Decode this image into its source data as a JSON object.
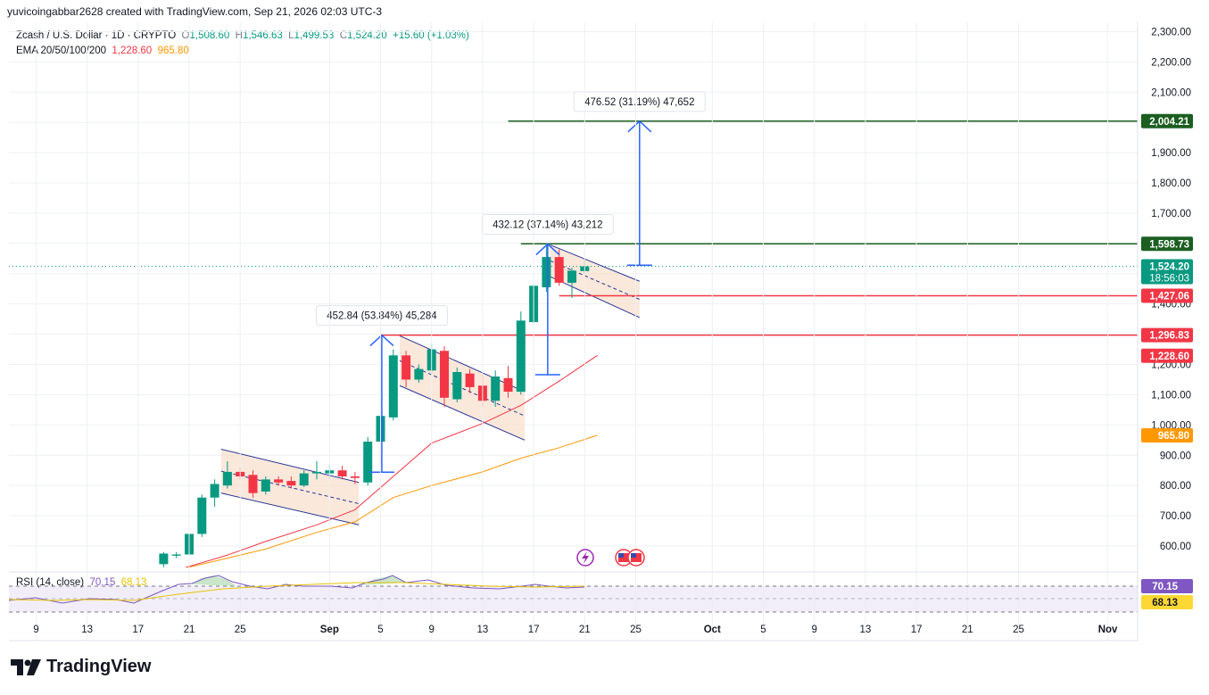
{
  "header": {
    "text": "yuvicoingabbar2628 created with TradingView.com, Sep 21, 2026 02:03 UTC-3"
  },
  "legend": {
    "symbol": "Zcash / U.S. Dollar · 1D · CRYPTO",
    "open_label": "O",
    "open": "1,508.60",
    "high_label": "H",
    "high": "1,546.63",
    "low_label": "L",
    "low": "1,499.53",
    "close_label": "C",
    "close": "1,524.20",
    "change": "+15.60 (+1.03%)",
    "ema_label": "EMA 20/50/100/200",
    "ema20": "1,228.60",
    "ema50": "965.80"
  },
  "rsi": {
    "label": "RSI (14, close)",
    "value": "70.15",
    "ma": "68.13"
  },
  "logo": {
    "text": "TradingView"
  },
  "colors": {
    "up": "#089981",
    "down": "#f23645",
    "ema20": "#f23645",
    "ema50": "#ff9800",
    "target_green": "#1b5e20",
    "measure_blue": "#2962ff",
    "channel_fill": "#f8dcc8",
    "rsi": "#7e57c2",
    "rsi_ma": "#e6c300"
  },
  "chart_data": {
    "type": "candlestick",
    "y_axis": {
      "min": 550,
      "max": 2320,
      "ticks": [
        "600.00",
        "700.00",
        "800.00",
        "900.00",
        "1,000.00",
        "1,100.00",
        "1,200.00",
        "1,300.00",
        "1,400.00",
        "1,500.00",
        "1,600.00",
        "1,700.00",
        "1,800.00",
        "1,900.00",
        "2,000.00",
        "2,100.00",
        "2,200.00",
        "2,300.00"
      ]
    },
    "x_axis": {
      "labels": [
        {
          "d": -12,
          "t": "9"
        },
        {
          "d": -8,
          "t": "13"
        },
        {
          "d": -4,
          "t": "17"
        },
        {
          "d": 0,
          "t": "21"
        },
        {
          "d": 4,
          "t": "25"
        },
        {
          "d": 11,
          "t": "Sep"
        },
        {
          "d": 15,
          "t": "5"
        },
        {
          "d": 19,
          "t": "9"
        },
        {
          "d": 23,
          "t": "13"
        },
        {
          "d": 27,
          "t": "17"
        },
        {
          "d": 31,
          "t": "21"
        },
        {
          "d": 35,
          "t": "25"
        },
        {
          "d": 41,
          "t": "Oct"
        },
        {
          "d": 45,
          "t": "5"
        },
        {
          "d": 49,
          "t": "9"
        },
        {
          "d": 53,
          "t": "13"
        },
        {
          "d": 57,
          "t": "17"
        },
        {
          "d": 61,
          "t": "21"
        },
        {
          "d": 65,
          "t": "25"
        },
        {
          "d": 72,
          "t": "Nov"
        }
      ]
    },
    "candles": [
      {
        "d": -2,
        "o": 540,
        "h": 580,
        "l": 530,
        "c": 575
      },
      {
        "d": -1,
        "o": 568,
        "h": 580,
        "l": 560,
        "c": 572
      },
      {
        "d": 0,
        "o": 572,
        "h": 650,
        "l": 565,
        "c": 640
      },
      {
        "d": 1,
        "o": 640,
        "h": 770,
        "l": 630,
        "c": 760
      },
      {
        "d": 2,
        "o": 760,
        "h": 820,
        "l": 730,
        "c": 805
      },
      {
        "d": 3,
        "o": 800,
        "h": 880,
        "l": 790,
        "c": 845
      },
      {
        "d": 4,
        "o": 845,
        "h": 860,
        "l": 820,
        "c": 830
      },
      {
        "d": 5,
        "o": 835,
        "h": 850,
        "l": 760,
        "c": 775
      },
      {
        "d": 6,
        "o": 780,
        "h": 830,
        "l": 770,
        "c": 820
      },
      {
        "d": 7,
        "o": 820,
        "h": 830,
        "l": 800,
        "c": 810
      },
      {
        "d": 8,
        "o": 815,
        "h": 830,
        "l": 790,
        "c": 800
      },
      {
        "d": 9,
        "o": 800,
        "h": 850,
        "l": 795,
        "c": 840
      },
      {
        "d": 10,
        "o": 840,
        "h": 880,
        "l": 820,
        "c": 845
      },
      {
        "d": 11,
        "o": 840,
        "h": 870,
        "l": 825,
        "c": 850
      },
      {
        "d": 12,
        "o": 850,
        "h": 865,
        "l": 820,
        "c": 830
      },
      {
        "d": 13,
        "o": 830,
        "h": 845,
        "l": 805,
        "c": 825
      },
      {
        "d": 14,
        "o": 810,
        "h": 960,
        "l": 800,
        "c": 945
      },
      {
        "d": 15,
        "o": 945,
        "h": 1040,
        "l": 930,
        "c": 1030
      },
      {
        "d": 16,
        "o": 1025,
        "h": 1250,
        "l": 1015,
        "c": 1230
      },
      {
        "d": 17,
        "o": 1230,
        "h": 1245,
        "l": 1125,
        "c": 1150
      },
      {
        "d": 18,
        "o": 1150,
        "h": 1200,
        "l": 1140,
        "c": 1185
      },
      {
        "d": 19,
        "o": 1180,
        "h": 1270,
        "l": 1170,
        "c": 1250
      },
      {
        "d": 20,
        "o": 1245,
        "h": 1260,
        "l": 1060,
        "c": 1090
      },
      {
        "d": 21,
        "o": 1085,
        "h": 1190,
        "l": 1075,
        "c": 1175
      },
      {
        "d": 22,
        "o": 1170,
        "h": 1185,
        "l": 1105,
        "c": 1125
      },
      {
        "d": 23,
        "o": 1130,
        "h": 1170,
        "l": 1060,
        "c": 1080
      },
      {
        "d": 24,
        "o": 1080,
        "h": 1180,
        "l": 1060,
        "c": 1160
      },
      {
        "d": 25,
        "o": 1155,
        "h": 1195,
        "l": 1090,
        "c": 1110
      },
      {
        "d": 26,
        "o": 1110,
        "h": 1375,
        "l": 1100,
        "c": 1345
      },
      {
        "d": 27,
        "o": 1340,
        "h": 1470,
        "l": 1330,
        "c": 1460
      },
      {
        "d": 28,
        "o": 1455,
        "h": 1600,
        "l": 1440,
        "c": 1555
      },
      {
        "d": 29,
        "o": 1555,
        "h": 1580,
        "l": 1460,
        "c": 1470
      },
      {
        "d": 30,
        "o": 1470,
        "h": 1520,
        "l": 1420,
        "c": 1510
      },
      {
        "d": 31,
        "o": 1508.6,
        "h": 1546.63,
        "l": 1499.53,
        "c": 1524.2
      }
    ],
    "ema20": [
      [
        -1,
        520
      ],
      [
        3,
        570
      ],
      [
        6,
        615
      ],
      [
        10,
        670
      ],
      [
        13,
        720
      ],
      [
        16,
        830
      ],
      [
        19,
        940
      ],
      [
        23,
        1005
      ],
      [
        26,
        1065
      ],
      [
        29,
        1145
      ],
      [
        32,
        1230
      ]
    ],
    "ema50": [
      [
        -1,
        520
      ],
      [
        3,
        560
      ],
      [
        6,
        590
      ],
      [
        10,
        645
      ],
      [
        13,
        680
      ],
      [
        16,
        760
      ],
      [
        19,
        800
      ],
      [
        23,
        845
      ],
      [
        26,
        890
      ],
      [
        29,
        925
      ],
      [
        32,
        966
      ]
    ],
    "horizontal_levels": [
      {
        "value": 2004.21,
        "label": "2,004.21",
        "color": "#1b5e20",
        "from_day": 25
      },
      {
        "value": 1598.73,
        "label": "1,598.73",
        "color": "#1b5e20",
        "from_day": 26
      },
      {
        "value": 1427.06,
        "label": "1,427.06",
        "color": "#f23645",
        "from_day": 29
      },
      {
        "value": 1296.83,
        "label": "1,296.83",
        "color": "#f23645",
        "from_day": 15
      }
    ],
    "price_tags": [
      {
        "value": 1524.2,
        "label": "1,524.20",
        "sub": "18:56:03",
        "color": "#089981"
      },
      {
        "value": 1228.6,
        "label": "1,228.60",
        "color": "#f23645"
      },
      {
        "value": 965.8,
        "label": "965.80",
        "color": "#ff9800"
      }
    ],
    "measures": [
      {
        "day": 15.1,
        "from": 844,
        "to": 1297,
        "label": "452.84 (53.84%) 45,284"
      },
      {
        "day": 28.1,
        "from": 1166,
        "to": 1598,
        "label": "432.12 (37.14%) 43,212"
      },
      {
        "day": 35.3,
        "from": 1528,
        "to": 2004,
        "label": "476.52 (31.19%) 47,652"
      }
    ],
    "channels": [
      {
        "d1": 2.5,
        "top1": 920,
        "bot1": 775,
        "d2": 13.3,
        "top2": 810,
        "bot2": 670
      },
      {
        "d1": 16.5,
        "top1": 1295,
        "bot1": 1130,
        "d2": 26.3,
        "top2": 1110,
        "bot2": 950
      },
      {
        "d1": 28.3,
        "top1": 1595,
        "bot1": 1490,
        "d2": 35.3,
        "top2": 1475,
        "bot2": 1355
      }
    ]
  }
}
